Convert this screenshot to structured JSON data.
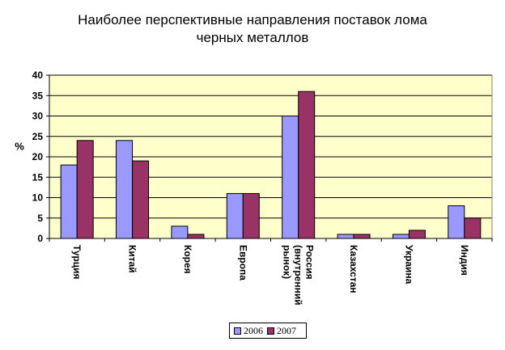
{
  "chart_data": {
    "type": "bar",
    "title_lines": [
      "Наиболее перспективные направления поставок лома",
      "черных металлов"
    ],
    "ylabel": "%",
    "xlabel": "",
    "ylim": [
      0,
      40
    ],
    "yticks": [
      0,
      5,
      10,
      15,
      20,
      25,
      30,
      35,
      40
    ],
    "grid": true,
    "legend_position": "bottom-center",
    "categories": [
      "Турция",
      "Китай",
      "Корея",
      "Европа",
      "Россия (внутренний рынок)",
      "Казахстан",
      "Украина",
      "Индия"
    ],
    "category_label_lines": [
      [
        "Турция"
      ],
      [
        "Китай"
      ],
      [
        "Корея"
      ],
      [
        "Европа"
      ],
      [
        "Россия",
        "(внутренний",
        "рынок)"
      ],
      [
        "Казахстан"
      ],
      [
        "Украина"
      ],
      [
        "Индия"
      ]
    ],
    "series": [
      {
        "name": "2006",
        "color": "#9999ff",
        "values": [
          18,
          24,
          3,
          11,
          30,
          1,
          1,
          8
        ]
      },
      {
        "name": "2007",
        "color": "#993366",
        "values": [
          24,
          19,
          1,
          11,
          36,
          1,
          2,
          5
        ]
      }
    ],
    "plot_background": "#ffffcc"
  }
}
